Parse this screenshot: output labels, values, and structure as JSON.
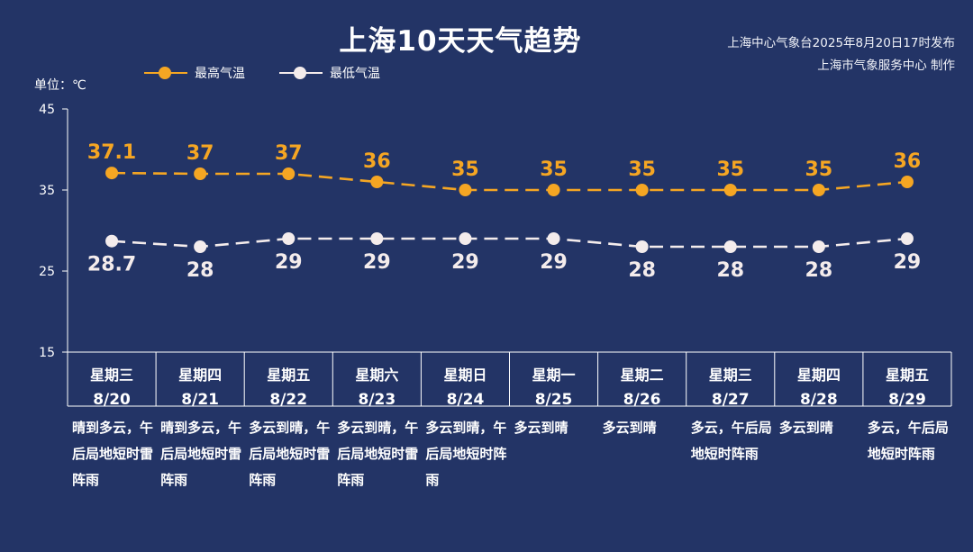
{
  "header": {
    "title": "上海10天天气趋势",
    "publisher_line1": "上海中心气象台2025年8月20日17时发布",
    "publisher_line2": "上海市气象服务中心 制作"
  },
  "unit_label": "单位：℃",
  "legend": {
    "high_label": "最高气温",
    "low_label": "最低气温"
  },
  "colors": {
    "background": "#233466",
    "high": "#f5a623",
    "low": "#f4ecec",
    "text": "#ffffff"
  },
  "days": [
    {
      "weekday": "星期三",
      "date": "8/20",
      "weather": "晴到多云，午后局地短时雷阵雨"
    },
    {
      "weekday": "星期四",
      "date": "8/21",
      "weather": "晴到多云，午后局地短时雷阵雨"
    },
    {
      "weekday": "星期五",
      "date": "8/22",
      "weather": "多云到晴，午后局地短时雷阵雨"
    },
    {
      "weekday": "星期六",
      "date": "8/23",
      "weather": "多云到晴，午后局地短时雷阵雨"
    },
    {
      "weekday": "星期日",
      "date": "8/24",
      "weather": "多云到晴，午后局地短时阵雨"
    },
    {
      "weekday": "星期一",
      "date": "8/25",
      "weather": "多云到晴"
    },
    {
      "weekday": "星期二",
      "date": "8/26",
      "weather": "多云到晴"
    },
    {
      "weekday": "星期三",
      "date": "8/27",
      "weather": "多云，午后局地短时阵雨"
    },
    {
      "weekday": "星期四",
      "date": "8/28",
      "weather": "多云到晴"
    },
    {
      "weekday": "星期五",
      "date": "8/29",
      "weather": "多云，午后局地短时阵雨"
    }
  ],
  "chart_data": {
    "type": "line",
    "title": "上海10天天气趋势",
    "ylabel": "单位：℃",
    "ylim": [
      15,
      45
    ],
    "yticks": [
      15,
      25,
      35,
      45
    ],
    "grid": false,
    "legend_position": "top-left",
    "categories": [
      "8/20",
      "8/21",
      "8/22",
      "8/23",
      "8/24",
      "8/25",
      "8/26",
      "8/27",
      "8/28",
      "8/29"
    ],
    "series": [
      {
        "name": "最高气温",
        "values": [
          37.1,
          37,
          37,
          36,
          35,
          35,
          35,
          35,
          35,
          36
        ],
        "labels": [
          "37.1",
          "37",
          "37",
          "36",
          "35",
          "35",
          "35",
          "35",
          "35",
          "36"
        ]
      },
      {
        "name": "最低气温",
        "values": [
          28.7,
          28,
          29,
          29,
          29,
          29,
          28,
          28,
          28,
          29
        ],
        "labels": [
          "28.7",
          "28",
          "29",
          "29",
          "29",
          "29",
          "28",
          "28",
          "28",
          "29"
        ]
      }
    ]
  }
}
